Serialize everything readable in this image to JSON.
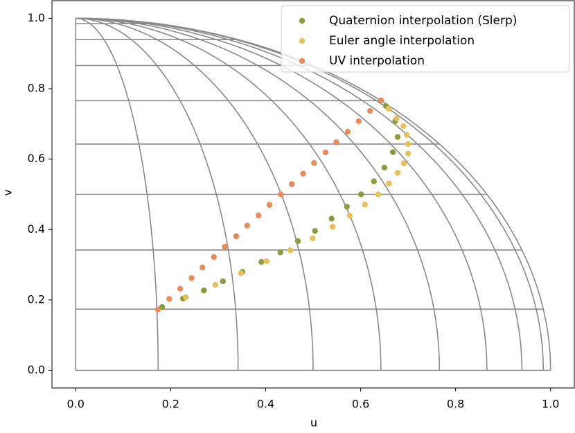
{
  "chart_data": {
    "type": "scatter",
    "x_label": "u",
    "y_label": "v",
    "xlim": [
      -0.05,
      1.05
    ],
    "ylim": [
      -0.05,
      1.05
    ],
    "xticks": [
      {
        "value": 0,
        "label": "0.0"
      },
      {
        "value": 0.2,
        "label": "0.2"
      },
      {
        "value": 0.4,
        "label": "0.4"
      },
      {
        "value": 0.6,
        "label": "0.6"
      },
      {
        "value": 0.8,
        "label": "0.8"
      },
      {
        "value": 1,
        "label": "1.0"
      }
    ],
    "yticks": [
      {
        "value": 0,
        "label": "0.0"
      },
      {
        "value": 0.2,
        "label": "0.2"
      },
      {
        "value": 0.4,
        "label": "0.4"
      },
      {
        "value": 0.6,
        "label": "0.6"
      },
      {
        "value": 0.8,
        "label": "0.8"
      },
      {
        "value": 1,
        "label": "1.0"
      }
    ],
    "legend": "upper right",
    "series": [
      {
        "name": "Quaternion interpolation (Slerp)",
        "color": "#8c9c3c",
        "x": [
          0.182,
          0.226,
          0.27,
          0.31,
          0.351,
          0.391,
          0.431,
          0.468,
          0.504,
          0.539,
          0.571,
          0.601,
          0.628,
          0.65,
          0.668,
          0.678,
          0.673,
          0.653
        ],
        "values": [
          0.18,
          0.204,
          0.227,
          0.253,
          0.28,
          0.308,
          0.335,
          0.367,
          0.396,
          0.431,
          0.465,
          0.5,
          0.537,
          0.576,
          0.62,
          0.663,
          0.708,
          0.751
        ]
      },
      {
        "name": "Euler angle interpolation",
        "color": "#e6c15a",
        "x": [
          0.232,
          0.294,
          0.348,
          0.402,
          0.452,
          0.499,
          0.541,
          0.577,
          0.609,
          0.637,
          0.66,
          0.678,
          0.691,
          0.7,
          0.7,
          0.697,
          0.69,
          0.676,
          0.659
        ],
        "values": [
          0.208,
          0.243,
          0.276,
          0.31,
          0.341,
          0.375,
          0.408,
          0.439,
          0.471,
          0.5,
          0.531,
          0.561,
          0.588,
          0.616,
          0.643,
          0.669,
          0.694,
          0.716,
          0.743
        ]
      },
      {
        "name": "UV interpolation",
        "color": "#e88c5a",
        "x": [
          0.173,
          0.197,
          0.22,
          0.244,
          0.267,
          0.291,
          0.314,
          0.338,
          0.361,
          0.385,
          0.408,
          0.432,
          0.455,
          0.479,
          0.502,
          0.526,
          0.549,
          0.573,
          0.596,
          0.62,
          0.643
        ],
        "values": [
          0.173,
          0.203,
          0.232,
          0.262,
          0.292,
          0.322,
          0.351,
          0.381,
          0.411,
          0.44,
          0.47,
          0.5,
          0.529,
          0.559,
          0.589,
          0.619,
          0.648,
          0.678,
          0.708,
          0.737,
          0.767
        ]
      }
    ]
  }
}
